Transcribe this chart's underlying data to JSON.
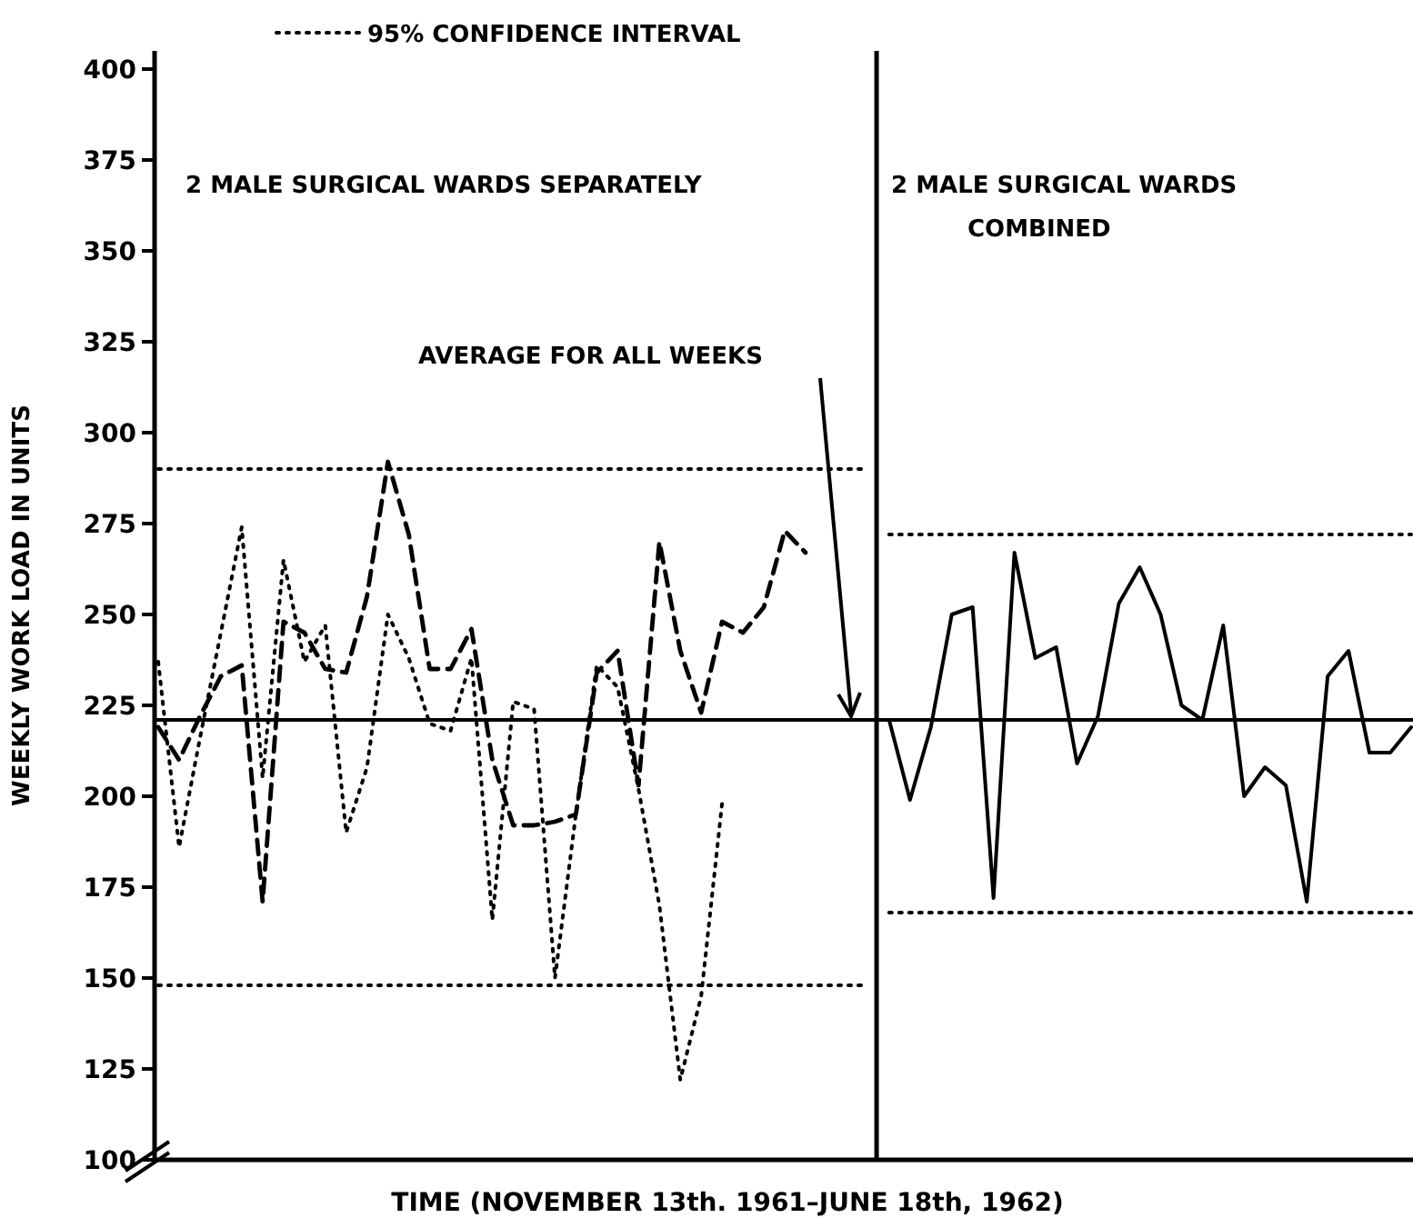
{
  "chart_data": {
    "type": "line",
    "xlabel": "TIME (NOVEMBER 13th. 1961–JUNE 18th, 1962)",
    "ylabel": "WEEKLY WORK LOAD IN UNITS",
    "annotations": [
      "2 MALE SURGICAL WARDS SEPARATELY",
      "2 MALE SURGICAL WARDS COMBINED",
      "AVERAGE FOR ALL WEEKS"
    ],
    "legend": "top",
    "categories": [
      null,
      null,
      null,
      null,
      null,
      null,
      null,
      null,
      null,
      null,
      null,
      null,
      null,
      null,
      null,
      null,
      null,
      null,
      null,
      null,
      null,
      null,
      null,
      null,
      null,
      null,
      null,
      null,
      null,
      null,
      null,
      null,
      null,
      null,
      null,
      null,
      null,
      null,
      null,
      null,
      null,
      null,
      null,
      null,
      null,
      null,
      null,
      null,
      null,
      null,
      null,
      null,
      null,
      null,
      null,
      null,
      null,
      null,
      null,
      null,
      null
    ],
    "series": [
      {
        "color": "#000000",
        "line_style": "dashed",
        "values": [
          219,
          210,
          222,
          233,
          236,
          171,
          248,
          245,
          235,
          234,
          255,
          292,
          272,
          235,
          235,
          246,
          210,
          192,
          192,
          193,
          195,
          234,
          240,
          203,
          270,
          240,
          223,
          248,
          245,
          252,
          273,
          267,
          null,
          null,
          null,
          null,
          null,
          null,
          null,
          null,
          null,
          null,
          null,
          null,
          null,
          null,
          null,
          null,
          null,
          null,
          null,
          null,
          null,
          null,
          null,
          null,
          null,
          null,
          null,
          null,
          null
        ]
      },
      {
        "color": "#000000",
        "line_style": "dotted",
        "values": [
          237,
          186,
          216,
          245,
          274,
          205,
          265,
          237,
          247,
          190,
          208,
          250,
          238,
          220,
          218,
          238,
          166,
          226,
          224,
          150,
          195,
          236,
          230,
          202,
          170,
          122,
          145,
          198,
          null,
          null,
          null,
          null,
          null,
          null,
          null,
          null,
          null,
          null,
          null,
          null,
          null,
          null,
          null,
          null,
          null,
          null,
          null,
          null,
          null,
          null,
          null,
          null,
          null,
          null,
          null,
          null,
          null,
          null,
          null,
          null,
          null
        ]
      },
      {
        "color": "#000000",
        "line_style": "solid",
        "values": [
          null,
          null,
          null,
          null,
          null,
          null,
          null,
          null,
          null,
          null,
          null,
          null,
          null,
          null,
          null,
          null,
          null,
          null,
          null,
          null,
          null,
          null,
          null,
          null,
          null,
          null,
          null,
          null,
          null,
          null,
          null,
          null,
          null,
          null,
          null,
          221,
          199,
          219,
          250,
          252,
          172,
          267,
          238,
          241,
          209,
          222,
          253,
          263,
          250,
          225,
          221,
          247,
          200,
          208,
          203,
          171,
          233,
          240,
          212,
          212,
          219
        ]
      },
      {
        "name": "95% CONFIDENCE INTERVAL",
        "color": "#000000",
        "line_style": "dotted",
        "values": [
          290,
          290,
          290,
          290,
          290,
          290,
          290,
          290,
          290,
          290,
          290,
          290,
          290,
          290,
          290,
          290,
          290,
          290,
          290,
          290,
          290,
          290,
          290,
          290,
          290,
          290,
          290,
          290,
          290,
          290,
          290,
          290,
          290,
          290,
          290,
          null,
          null,
          null,
          null,
          null,
          null,
          null,
          null,
          null,
          null,
          null,
          null,
          null,
          null,
          null,
          null,
          null,
          null,
          null,
          null,
          null,
          null,
          null,
          null,
          null,
          null
        ]
      },
      {
        "color": "#000000",
        "line_style": "dotted",
        "values": [
          148,
          148,
          148,
          148,
          148,
          148,
          148,
          148,
          148,
          148,
          148,
          148,
          148,
          148,
          148,
          148,
          148,
          148,
          148,
          148,
          148,
          148,
          148,
          148,
          148,
          148,
          148,
          148,
          148,
          148,
          148,
          148,
          148,
          148,
          148,
          null,
          null,
          null,
          null,
          null,
          null,
          null,
          null,
          null,
          null,
          null,
          null,
          null,
          null,
          null,
          null,
          null,
          null,
          null,
          null,
          null,
          null,
          null,
          null,
          null,
          null
        ]
      },
      {
        "color": "#000000",
        "line_style": "dotted",
        "values": [
          null,
          null,
          null,
          null,
          null,
          null,
          null,
          null,
          null,
          null,
          null,
          null,
          null,
          null,
          null,
          null,
          null,
          null,
          null,
          null,
          null,
          null,
          null,
          null,
          null,
          null,
          null,
          null,
          null,
          null,
          null,
          null,
          null,
          null,
          null,
          272,
          272,
          272,
          272,
          272,
          272,
          272,
          272,
          272,
          272,
          272,
          272,
          272,
          272,
          272,
          272,
          272,
          272,
          272,
          272,
          272,
          272,
          272,
          272,
          272,
          272
        ]
      },
      {
        "color": "#000000",
        "line_style": "dotted",
        "values": [
          null,
          null,
          null,
          null,
          null,
          null,
          null,
          null,
          null,
          null,
          null,
          null,
          null,
          null,
          null,
          null,
          null,
          null,
          null,
          null,
          null,
          null,
          null,
          null,
          null,
          null,
          null,
          null,
          null,
          null,
          null,
          null,
          null,
          null,
          null,
          168,
          168,
          168,
          168,
          168,
          168,
          168,
          168,
          168,
          168,
          168,
          168,
          168,
          168,
          168,
          168,
          168,
          168,
          168,
          168,
          168,
          168,
          168,
          168,
          168,
          168
        ]
      }
    ],
    "ylim": [
      100,
      405
    ],
    "yticks": [
      100,
      125,
      150,
      175,
      200,
      225,
      250,
      275,
      300,
      325,
      350,
      375,
      400
    ],
    "ref_lines": [
      {
        "axis": "y",
        "value": 221,
        "line_style": "solid",
        "color": "#000000"
      }
    ]
  }
}
